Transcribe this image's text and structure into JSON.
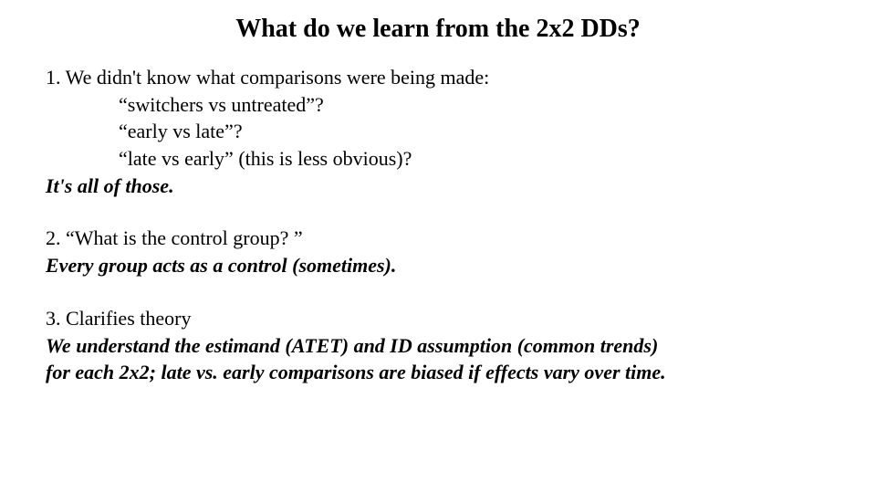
{
  "title": "What do we learn from the 2x2 DDs?",
  "section1": {
    "lead": "1. We didn't know what comparisons were being made:",
    "item1": "“switchers vs untreated”?",
    "item2": "“early vs late”?",
    "item3": "“late vs early” (this is less obvious)?",
    "answer": "It's all of those."
  },
  "section2": {
    "lead": "2. “What is the control group? ”",
    "answer": "Every group acts as a control (sometimes)."
  },
  "section3": {
    "lead": "3. Clarifies theory",
    "answer_line1": "We understand the estimand (ATET) and ID assumption (common trends)",
    "answer_line2": "for each 2x2; late vs. early comparisons are biased if effects vary over time."
  },
  "colors": {
    "background": "#ffffff",
    "text": "#000000"
  },
  "typography": {
    "title_fontsize": 28,
    "body_fontsize": 22,
    "font_family": "Times New Roman"
  }
}
